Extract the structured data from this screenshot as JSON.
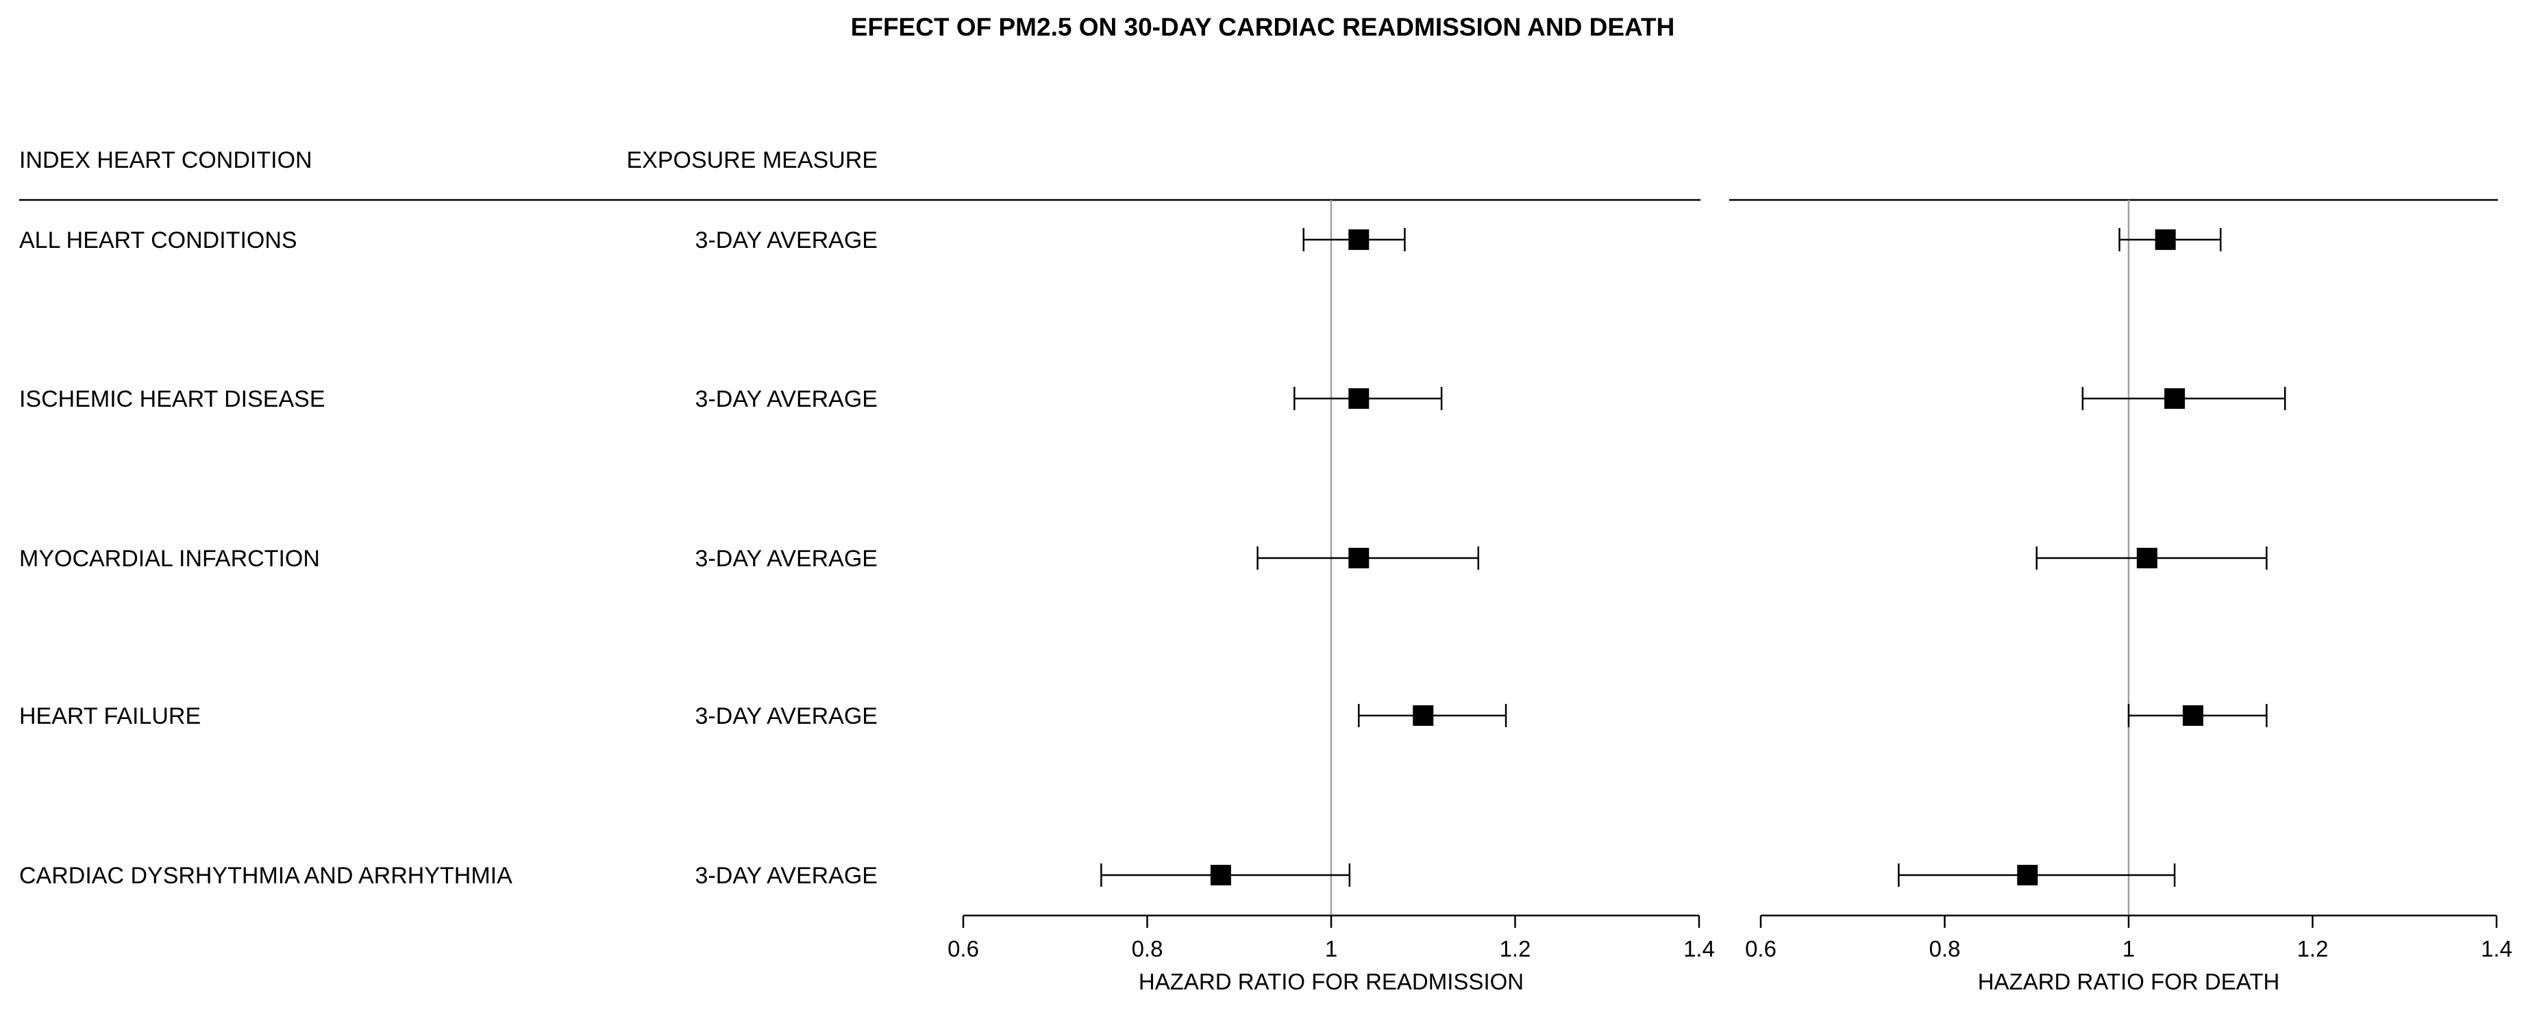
{
  "chart_data": {
    "type": "forest",
    "title": "EFFECT OF PM2.5 ON 30-DAY CARDIAC READMISSION AND DEATH",
    "column_headers": {
      "condition": "INDEX HEART CONDITION",
      "exposure": "EXPOSURE MEASURE"
    },
    "rows": [
      {
        "condition": "ALL HEART CONDITIONS",
        "exposure": "3-DAY AVERAGE"
      },
      {
        "condition": "ISCHEMIC HEART DISEASE",
        "exposure": "3-DAY AVERAGE"
      },
      {
        "condition": "MYOCARDIAL INFARCTION",
        "exposure": "3-DAY AVERAGE"
      },
      {
        "condition": "HEART FAILURE",
        "exposure": "3-DAY AVERAGE"
      },
      {
        "condition": "CARDIAC DYSRHYTHMIA AND ARRHYTHMIA",
        "exposure": "3-DAY AVERAGE"
      }
    ],
    "panels": [
      {
        "id": "readmission",
        "xlabel": "HAZARD RATIO FOR READMISSION",
        "xlim": [
          0.6,
          1.4
        ],
        "ticks": [
          0.6,
          0.8,
          1,
          1.2,
          1.4
        ],
        "tick_labels": [
          "0.6",
          "0.8",
          "1",
          "1.2",
          "1.4"
        ],
        "reference": 1,
        "estimates": [
          {
            "hr": 1.03,
            "lower": 0.97,
            "upper": 1.08
          },
          {
            "hr": 1.03,
            "lower": 0.96,
            "upper": 1.12
          },
          {
            "hr": 1.03,
            "lower": 0.92,
            "upper": 1.16
          },
          {
            "hr": 1.1,
            "lower": 1.03,
            "upper": 1.19
          },
          {
            "hr": 0.88,
            "lower": 0.75,
            "upper": 1.02
          }
        ]
      },
      {
        "id": "death",
        "xlabel": "HAZARD RATIO FOR DEATH",
        "xlim": [
          0.6,
          1.4
        ],
        "ticks": [
          0.6,
          0.8,
          1,
          1.2,
          1.4
        ],
        "tick_labels": [
          "0.6",
          "0.8",
          "1",
          "1.2",
          "1.4"
        ],
        "reference": 1,
        "estimates": [
          {
            "hr": 1.04,
            "lower": 0.99,
            "upper": 1.1
          },
          {
            "hr": 1.05,
            "lower": 0.95,
            "upper": 1.17
          },
          {
            "hr": 1.02,
            "lower": 0.9,
            "upper": 1.15
          },
          {
            "hr": 1.07,
            "lower": 1.0,
            "upper": 1.15
          },
          {
            "hr": 0.89,
            "lower": 0.75,
            "upper": 1.05
          }
        ]
      }
    ],
    "colors": {
      "marker": "#000000",
      "line": "#000000",
      "reference_line": "#a0a0a0"
    }
  }
}
